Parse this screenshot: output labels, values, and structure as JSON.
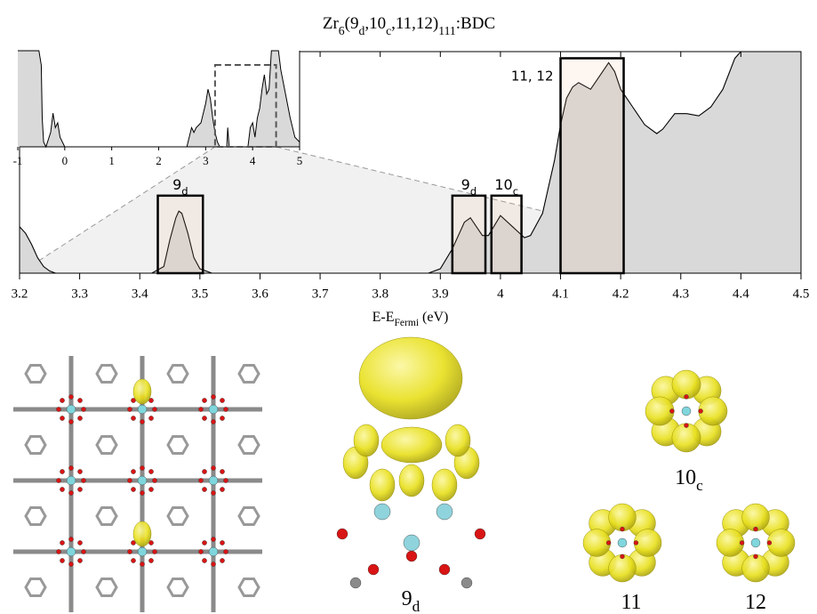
{
  "chart_data": {
    "type": "area",
    "title": [
      {
        "text": "Zr"
      },
      {
        "sub": "6"
      },
      {
        "text": "(9"
      },
      {
        "sub": "d"
      },
      {
        "text": ",10"
      },
      {
        "sub": "c"
      },
      {
        "text": ",11,12)"
      },
      {
        "sub": "111"
      },
      {
        "text": ":BDC"
      }
    ],
    "x_label": [
      {
        "text": "E-E"
      },
      {
        "sub": "Fermi"
      },
      {
        "text": " (eV)"
      }
    ],
    "x": [
      3.2,
      3.21,
      3.22,
      3.23,
      3.24,
      3.25,
      3.26,
      3.42,
      3.44,
      3.45,
      3.46,
      3.465,
      3.47,
      3.48,
      3.49,
      3.5,
      3.52,
      3.88,
      3.9,
      3.92,
      3.94,
      3.95,
      3.97,
      3.98,
      4.0,
      4.02,
      4.04,
      4.05,
      4.07,
      4.09,
      4.1,
      4.11,
      4.12,
      4.13,
      4.15,
      4.17,
      4.18,
      4.19,
      4.2,
      4.22,
      4.24,
      4.26,
      4.27,
      4.29,
      4.31,
      4.33,
      4.35,
      4.37,
      4.39,
      4.4,
      4.45,
      4.5
    ],
    "values": [
      0.21,
      0.18,
      0.13,
      0.07,
      0.03,
      0.01,
      0,
      0,
      0.03,
      0.15,
      0.25,
      0.28,
      0.27,
      0.18,
      0.07,
      0.02,
      0,
      0,
      0.02,
      0.11,
      0.23,
      0.25,
      0.17,
      0.17,
      0.26,
      0.21,
      0.16,
      0.17,
      0.27,
      0.51,
      0.67,
      0.79,
      0.84,
      0.86,
      0.83,
      0.91,
      0.95,
      0.91,
      0.83,
      0.75,
      0.67,
      0.63,
      0.65,
      0.72,
      0.72,
      0.71,
      0.75,
      0.83,
      0.97,
      1.0,
      1.0,
      1.0
    ],
    "color": "#d9d9d9",
    "xlim": [
      3.2,
      4.5
    ],
    "ylim": [
      0,
      1
    ],
    "xticks": [
      3.2,
      3.3,
      3.4,
      3.5,
      3.6,
      3.7,
      3.8,
      3.9,
      4,
      4.1,
      4.2,
      4.3,
      4.4,
      4.5
    ],
    "boxes": [
      {
        "label": [
          {
            "text": "9"
          },
          {
            "sub": "d"
          }
        ],
        "x": [
          3.43,
          3.505
        ],
        "top": 0.35
      },
      {
        "label": [
          {
            "text": "9"
          },
          {
            "sub": "d"
          }
        ],
        "x": [
          3.92,
          3.975
        ],
        "top": 0.35
      },
      {
        "label": [
          {
            "text": "10"
          },
          {
            "sub": "c"
          }
        ],
        "x": [
          3.985,
          4.035
        ],
        "top": 0.35
      },
      {
        "label": [
          {
            "text": "11, 12"
          }
        ],
        "x": [
          4.1,
          4.205
        ],
        "top": 0.97
      }
    ],
    "inset": {
      "x": [
        -1,
        -0.55,
        -0.5,
        -0.48,
        -0.45,
        -0.4,
        -0.3,
        -0.25,
        -0.2,
        -0.15,
        -0.1,
        -0.05,
        0,
        2.6,
        2.65,
        2.7,
        2.75,
        2.8,
        2.9,
        3.0,
        3.05,
        3.1,
        3.15,
        3.2,
        3.25,
        3.3,
        3.45,
        3.47,
        3.5,
        3.9,
        3.95,
        4.0,
        4.05,
        4.1,
        4.15,
        4.2,
        4.25,
        4.3,
        4.35,
        4.4,
        4.55,
        4.6,
        4.7,
        4.8,
        4.9,
        5
      ],
      "values": [
        1.0,
        1.0,
        0.85,
        0.3,
        0.05,
        0,
        0.15,
        0.35,
        0.2,
        0.25,
        0.1,
        0.05,
        0,
        0,
        0.1,
        0.2,
        0.15,
        0.2,
        0.25,
        0.45,
        0.6,
        0.5,
        0.3,
        0.15,
        0.05,
        0,
        0,
        0.2,
        0,
        0,
        0.2,
        0.25,
        0.1,
        0.3,
        0.4,
        0.6,
        0.75,
        0.55,
        0.6,
        1.0,
        1.0,
        0.8,
        0.55,
        0.3,
        0.1,
        0.05
      ],
      "xlim": [
        -1,
        5
      ],
      "ylim": [
        0,
        1
      ],
      "xticks": [
        -1,
        0,
        1,
        2,
        3,
        4,
        5
      ]
    }
  },
  "panels": [
    {
      "label": [
        {
          "text": "9"
        },
        {
          "sub": "d"
        }
      ]
    },
    {
      "label": [
        {
          "text": "10"
        },
        {
          "sub": "c"
        }
      ]
    },
    {
      "label": [
        {
          "text": "11"
        }
      ]
    },
    {
      "label": [
        {
          "text": "12"
        }
      ]
    }
  ]
}
